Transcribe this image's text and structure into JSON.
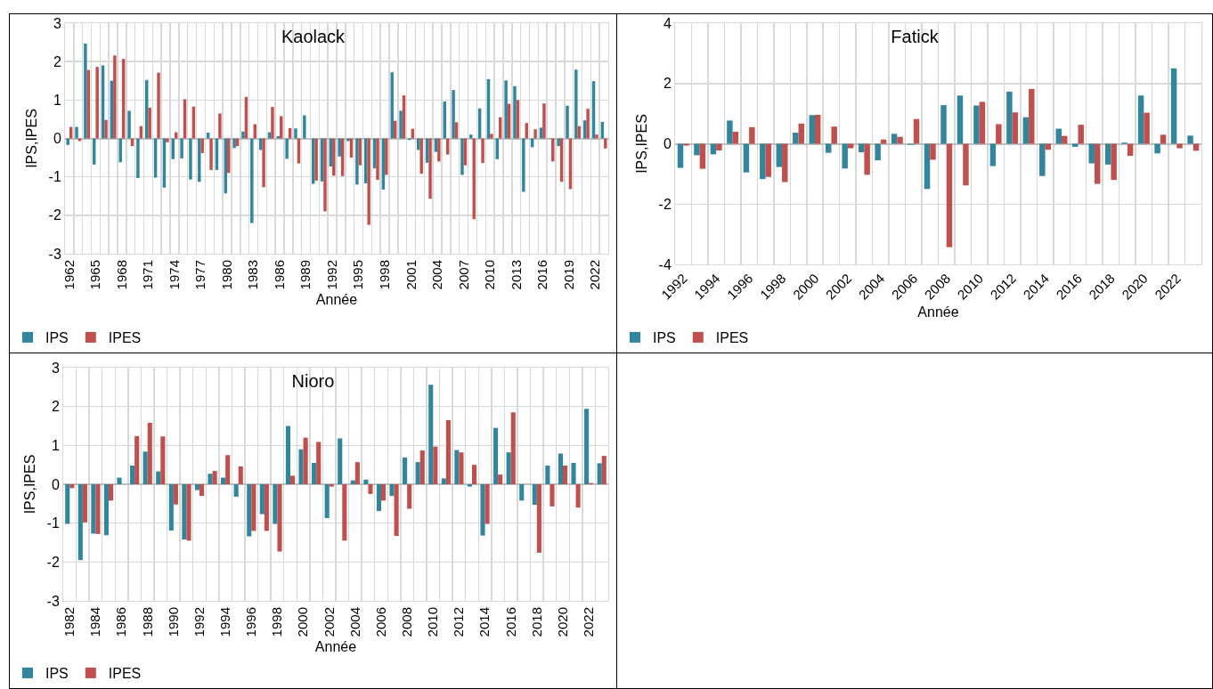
{
  "chart_data": [
    {
      "type": "bar",
      "title": "Kaolack",
      "xlabel": "Année",
      "ylabel": "IPS,IPES",
      "grid": true,
      "legend": "bottom left",
      "ylim": [
        -3,
        3
      ],
      "yticks": [
        -3,
        -2,
        -1,
        0,
        1,
        2,
        3
      ],
      "categories": [
        "1962",
        null,
        null,
        "1965",
        null,
        null,
        "1968",
        null,
        null,
        "1971",
        null,
        null,
        "1974",
        null,
        null,
        "1977",
        null,
        null,
        "1980",
        null,
        null,
        "1983",
        null,
        null,
        "1986",
        null,
        null,
        "1989",
        null,
        null,
        "1992",
        null,
        null,
        "1995",
        null,
        null,
        "1998",
        null,
        null,
        "2001",
        null,
        null,
        "2004",
        null,
        null,
        "2007",
        null,
        null,
        "2010",
        null,
        null,
        "2013",
        null,
        null,
        "2016",
        null,
        null,
        "2019",
        null,
        null,
        "2022",
        null
      ],
      "series": [
        {
          "name": "IPS",
          "color": "#31859c",
          "values": [
            -0.17,
            0.3,
            2.47,
            -0.68,
            1.9,
            1.5,
            -0.62,
            0.72,
            -1.03,
            1.52,
            -1.02,
            -1.28,
            -0.54,
            -0.52,
            -1.07,
            -1.13,
            0.15,
            -0.82,
            -1.43,
            -0.25,
            0.18,
            -2.2,
            -0.3,
            0.16,
            0.06,
            -0.53,
            0.26,
            0.6,
            -1.18,
            -1.12,
            -0.73,
            -0.47,
            -0.07,
            -1.2,
            -1.17,
            -0.78,
            -1.33,
            1.72,
            0.72,
            -0.04,
            -0.3,
            -0.63,
            -0.35,
            0.96,
            1.26,
            -0.95,
            0.1,
            0.78,
            1.54,
            -0.54,
            1.51,
            1.36,
            -1.39,
            -0.23,
            0.28,
            0.01,
            -0.2,
            0.85,
            1.79,
            0.47,
            1.49,
            0.43
          ]
        },
        {
          "name": "IPES",
          "color": "#c0504d",
          "values": [
            0.3,
            -0.07,
            1.78,
            1.86,
            0.48,
            2.16,
            2.07,
            -0.2,
            0.32,
            0.8,
            1.71,
            -0.1,
            0.16,
            1.02,
            0.83,
            -0.38,
            -0.82,
            0.65,
            -0.9,
            -0.2,
            1.08,
            0.37,
            -1.27,
            0.82,
            0.58,
            0.27,
            -0.65,
            0.0,
            -1.1,
            -1.9,
            -0.97,
            -0.98,
            -0.5,
            -0.7,
            -2.25,
            -1.08,
            -0.95,
            0.46,
            1.12,
            0.25,
            -0.92,
            -1.57,
            -0.6,
            -0.42,
            0.42,
            -0.7,
            -2.1,
            -0.64,
            0.12,
            0.55,
            0.9,
            1.0,
            0.4,
            0.24,
            0.91,
            -0.6,
            -1.13,
            -1.32,
            0.32,
            0.77,
            0.1,
            -0.26
          ]
        }
      ]
    },
    {
      "type": "bar",
      "title": "Fatick",
      "xlabel": "Année",
      "ylabel": "IPS,IPES",
      "grid": true,
      "legend": "bottom left",
      "ylim": [
        -4,
        4
      ],
      "yticks": [
        -4,
        -2,
        0,
        2,
        4
      ],
      "categories": [
        "1992",
        null,
        "1994",
        null,
        "1996",
        null,
        "1998",
        null,
        "2000",
        null,
        "2002",
        null,
        "2004",
        null,
        "2006",
        null,
        "2008",
        null,
        "2010",
        null,
        "2012",
        null,
        "2014",
        null,
        "2016",
        null,
        "2018",
        null,
        "2020",
        null,
        "2022",
        null
      ],
      "series": [
        {
          "name": "IPS",
          "color": "#31859c",
          "values": [
            -0.8,
            -0.38,
            -0.35,
            0.77,
            -0.95,
            -1.17,
            -0.77,
            0.37,
            0.95,
            -0.3,
            -0.82,
            -0.28,
            -0.55,
            0.33,
            -0.03,
            -1.5,
            1.28,
            1.6,
            1.27,
            -0.74,
            1.73,
            0.88,
            -1.07,
            0.5,
            -0.1,
            -0.65,
            -0.69,
            0.04,
            1.6,
            -0.32,
            2.5,
            0.27
          ]
        },
        {
          "name": "IPES",
          "color": "#c0504d",
          "values": [
            -0.06,
            -0.83,
            -0.22,
            0.4,
            0.55,
            -1.1,
            -1.27,
            0.67,
            0.96,
            0.57,
            -0.15,
            -1.03,
            0.14,
            0.23,
            0.82,
            -0.53,
            -3.43,
            -1.38,
            1.39,
            0.65,
            1.04,
            1.82,
            -0.2,
            0.26,
            0.63,
            -1.33,
            -1.2,
            -0.4,
            1.03,
            0.3,
            -0.15,
            -0.23
          ]
        }
      ]
    },
    {
      "type": "bar",
      "title": "Nioro",
      "xlabel": "Année",
      "ylabel": "IPS,IPES",
      "grid": true,
      "legend": "bottom left",
      "ylim": [
        -3,
        3
      ],
      "yticks": [
        -3,
        -2,
        -1,
        0,
        1,
        2,
        3
      ],
      "categories": [
        "1982",
        null,
        "1984",
        null,
        "1986",
        null,
        "1988",
        null,
        "1990",
        null,
        "1992",
        null,
        "1994",
        null,
        "1996",
        null,
        "1998",
        null,
        "2000",
        null,
        "2002",
        null,
        "2004",
        null,
        "2006",
        null,
        "2008",
        null,
        "2010",
        null,
        "2012",
        null,
        "2014",
        null,
        "2016",
        null,
        "2018",
        null,
        "2020",
        null,
        "2022",
        null
      ],
      "series": [
        {
          "name": "IPS",
          "color": "#31859c",
          "values": [
            -1.02,
            -1.95,
            -1.27,
            -1.31,
            0.17,
            0.48,
            0.84,
            0.33,
            -1.19,
            -1.42,
            -0.15,
            0.27,
            0.17,
            -0.32,
            -1.34,
            -0.77,
            -1.02,
            1.5,
            0.9,
            0.55,
            -0.87,
            1.18,
            0.1,
            0.12,
            -0.69,
            -0.3,
            0.69,
            0.57,
            2.56,
            0.15,
            0.88,
            -0.06,
            -1.32,
            1.45,
            0.82,
            -0.42,
            -0.53,
            0.48,
            0.79,
            0.55,
            1.94,
            0.54
          ]
        },
        {
          "name": "IPES",
          "color": "#c0504d",
          "values": [
            -0.1,
            -0.98,
            -1.28,
            -0.42,
            0.0,
            1.24,
            1.58,
            1.23,
            -0.52,
            -1.45,
            -0.3,
            0.34,
            0.75,
            0.46,
            -1.2,
            -1.2,
            -1.73,
            0.22,
            1.2,
            1.09,
            -0.06,
            -1.45,
            0.57,
            -0.25,
            -0.42,
            -1.33,
            -0.63,
            0.87,
            0.97,
            1.65,
            0.82,
            0.5,
            -1.02,
            0.25,
            1.85,
            null,
            -1.76,
            -0.57,
            0.48,
            -0.6,
            0.03,
            0.73
          ]
        }
      ]
    }
  ]
}
